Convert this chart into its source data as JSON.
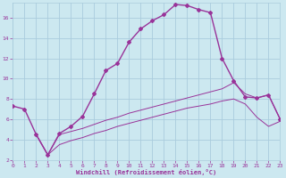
{
  "bg_color": "#cce8f0",
  "grid_color": "#aaccdd",
  "line_color": "#993399",
  "xlabel": "Windchill (Refroidissement éolien,°C)",
  "xlim": [
    0,
    23
  ],
  "ylim": [
    2,
    17.5
  ],
  "xticks": [
    0,
    1,
    2,
    3,
    4,
    5,
    6,
    7,
    8,
    9,
    10,
    11,
    12,
    13,
    14,
    15,
    16,
    17,
    18,
    19,
    20,
    21,
    22,
    23
  ],
  "yticks": [
    2,
    4,
    6,
    8,
    10,
    12,
    14,
    16
  ],
  "curve1_x": [
    0,
    1,
    2,
    3,
    4,
    5,
    6,
    7,
    8,
    9,
    10,
    11,
    12,
    13,
    14,
    15,
    16,
    17,
    18,
    19,
    20,
    21,
    22,
    23
  ],
  "curve1_y": [
    7.3,
    7.0,
    4.5,
    2.5,
    4.6,
    5.3,
    6.3,
    8.5,
    10.8,
    11.5,
    13.6,
    14.9,
    15.7,
    16.3,
    17.3,
    17.2,
    16.8,
    16.5,
    12.0,
    9.8,
    8.2,
    8.1,
    8.4,
    6.0
  ],
  "curve2_x": [
    2,
    3,
    4,
    5,
    6,
    7,
    8,
    9,
    10,
    11,
    12,
    13,
    14,
    15,
    16,
    17,
    18,
    19,
    20,
    21,
    22,
    23
  ],
  "curve2_y": [
    4.5,
    2.5,
    4.5,
    4.8,
    5.1,
    5.5,
    5.9,
    6.2,
    6.6,
    6.9,
    7.2,
    7.5,
    7.8,
    8.1,
    8.4,
    8.7,
    9.0,
    9.6,
    8.5,
    8.1,
    8.4,
    6.0
  ],
  "curve3_x": [
    2,
    3,
    4,
    5,
    6,
    7,
    8,
    9,
    10,
    11,
    12,
    13,
    14,
    15,
    16,
    17,
    18,
    19,
    20,
    21,
    22,
    23
  ],
  "curve3_y": [
    4.5,
    2.5,
    3.5,
    3.9,
    4.2,
    4.6,
    4.9,
    5.3,
    5.6,
    5.9,
    6.2,
    6.5,
    6.8,
    7.1,
    7.3,
    7.5,
    7.8,
    8.0,
    7.5,
    6.2,
    5.3,
    5.8
  ]
}
